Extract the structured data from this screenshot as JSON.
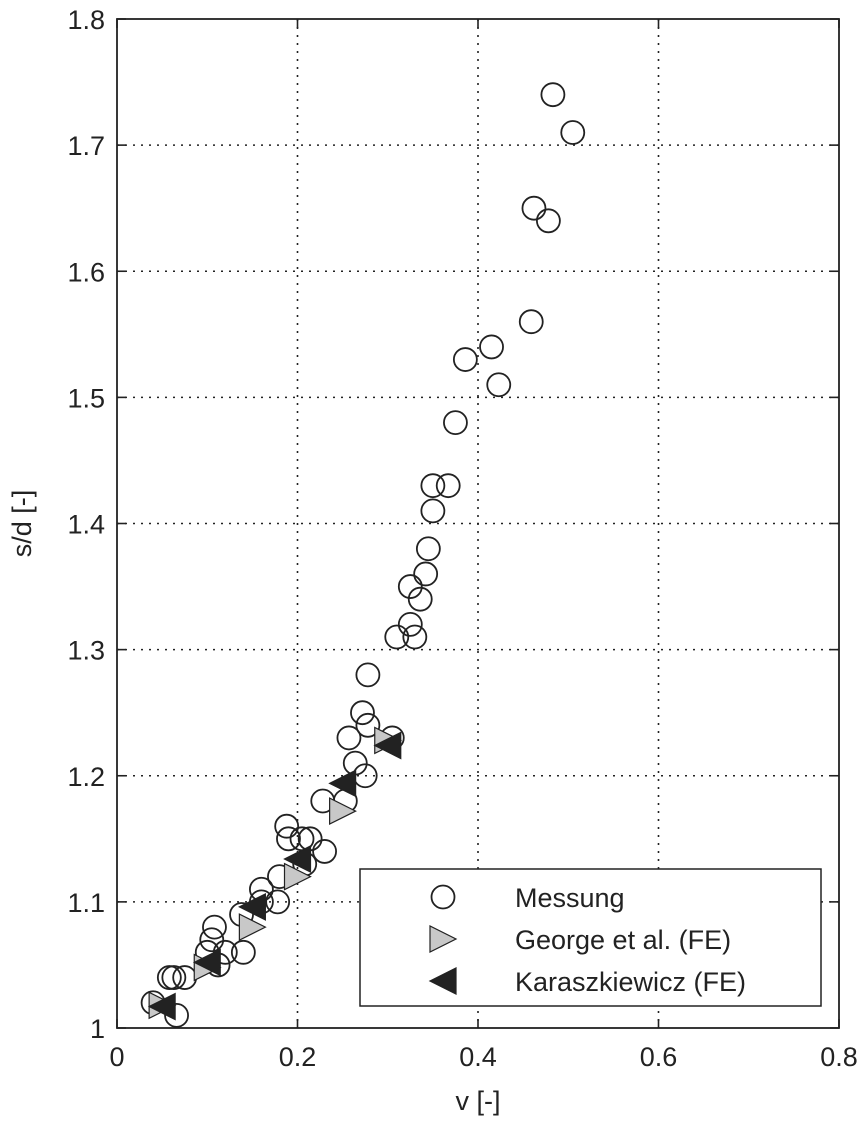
{
  "chart_data": {
    "type": "scatter",
    "title": "",
    "xlabel": "v [-]",
    "ylabel": "s/d [-]",
    "xlim": [
      0,
      0.8
    ],
    "ylim": [
      1,
      1.8
    ],
    "xticks": [
      "0",
      "0.2",
      "0.4",
      "0.6",
      "0.8"
    ],
    "yticks": [
      "1",
      "1.1",
      "1.2",
      "1.3",
      "1.4",
      "1.5",
      "1.6",
      "1.7",
      "1.8"
    ],
    "grid": true,
    "legend_position": "bottom-right",
    "series": [
      {
        "name": "Messung",
        "marker": "open-circle",
        "color": "#222222",
        "points": [
          [
            0.483,
            1.74
          ],
          [
            0.505,
            1.71
          ],
          [
            0.462,
            1.65
          ],
          [
            0.478,
            1.64
          ],
          [
            0.459,
            1.56
          ],
          [
            0.415,
            1.54
          ],
          [
            0.386,
            1.53
          ],
          [
            0.423,
            1.51
          ],
          [
            0.375,
            1.48
          ],
          [
            0.35,
            1.43
          ],
          [
            0.367,
            1.43
          ],
          [
            0.35,
            1.41
          ],
          [
            0.345,
            1.38
          ],
          [
            0.342,
            1.36
          ],
          [
            0.325,
            1.35
          ],
          [
            0.336,
            1.34
          ],
          [
            0.325,
            1.32
          ],
          [
            0.33,
            1.31
          ],
          [
            0.31,
            1.31
          ],
          [
            0.278,
            1.28
          ],
          [
            0.272,
            1.25
          ],
          [
            0.278,
            1.24
          ],
          [
            0.257,
            1.23
          ],
          [
            0.305,
            1.23
          ],
          [
            0.264,
            1.21
          ],
          [
            0.275,
            1.2
          ],
          [
            0.253,
            1.18
          ],
          [
            0.228,
            1.18
          ],
          [
            0.188,
            1.16
          ],
          [
            0.19,
            1.15
          ],
          [
            0.205,
            1.15
          ],
          [
            0.214,
            1.15
          ],
          [
            0.208,
            1.13
          ],
          [
            0.23,
            1.14
          ],
          [
            0.18,
            1.12
          ],
          [
            0.16,
            1.11
          ],
          [
            0.16,
            1.1
          ],
          [
            0.178,
            1.1
          ],
          [
            0.138,
            1.09
          ],
          [
            0.108,
            1.08
          ],
          [
            0.105,
            1.07
          ],
          [
            0.1,
            1.06
          ],
          [
            0.12,
            1.06
          ],
          [
            0.14,
            1.06
          ],
          [
            0.112,
            1.05
          ],
          [
            0.058,
            1.04
          ],
          [
            0.075,
            1.04
          ],
          [
            0.063,
            1.04
          ],
          [
            0.04,
            1.02
          ],
          [
            0.066,
            1.01
          ]
        ]
      },
      {
        "name": "George et al. (FE)",
        "marker": "triangle-right",
        "color": "#c8c8c8",
        "points": [
          [
            0.05,
            1.018
          ],
          [
            0.1,
            1.048
          ],
          [
            0.15,
            1.08
          ],
          [
            0.2,
            1.12
          ],
          [
            0.25,
            1.172
          ],
          [
            0.3,
            1.228
          ]
        ]
      },
      {
        "name": "Karaszkiewicz (FE)",
        "marker": "triangle-left",
        "color": "#222222",
        "points": [
          [
            0.05,
            1.017
          ],
          [
            0.1,
            1.052
          ],
          [
            0.15,
            1.096
          ],
          [
            0.2,
            1.134
          ],
          [
            0.25,
            1.194
          ],
          [
            0.3,
            1.224
          ]
        ]
      }
    ]
  }
}
